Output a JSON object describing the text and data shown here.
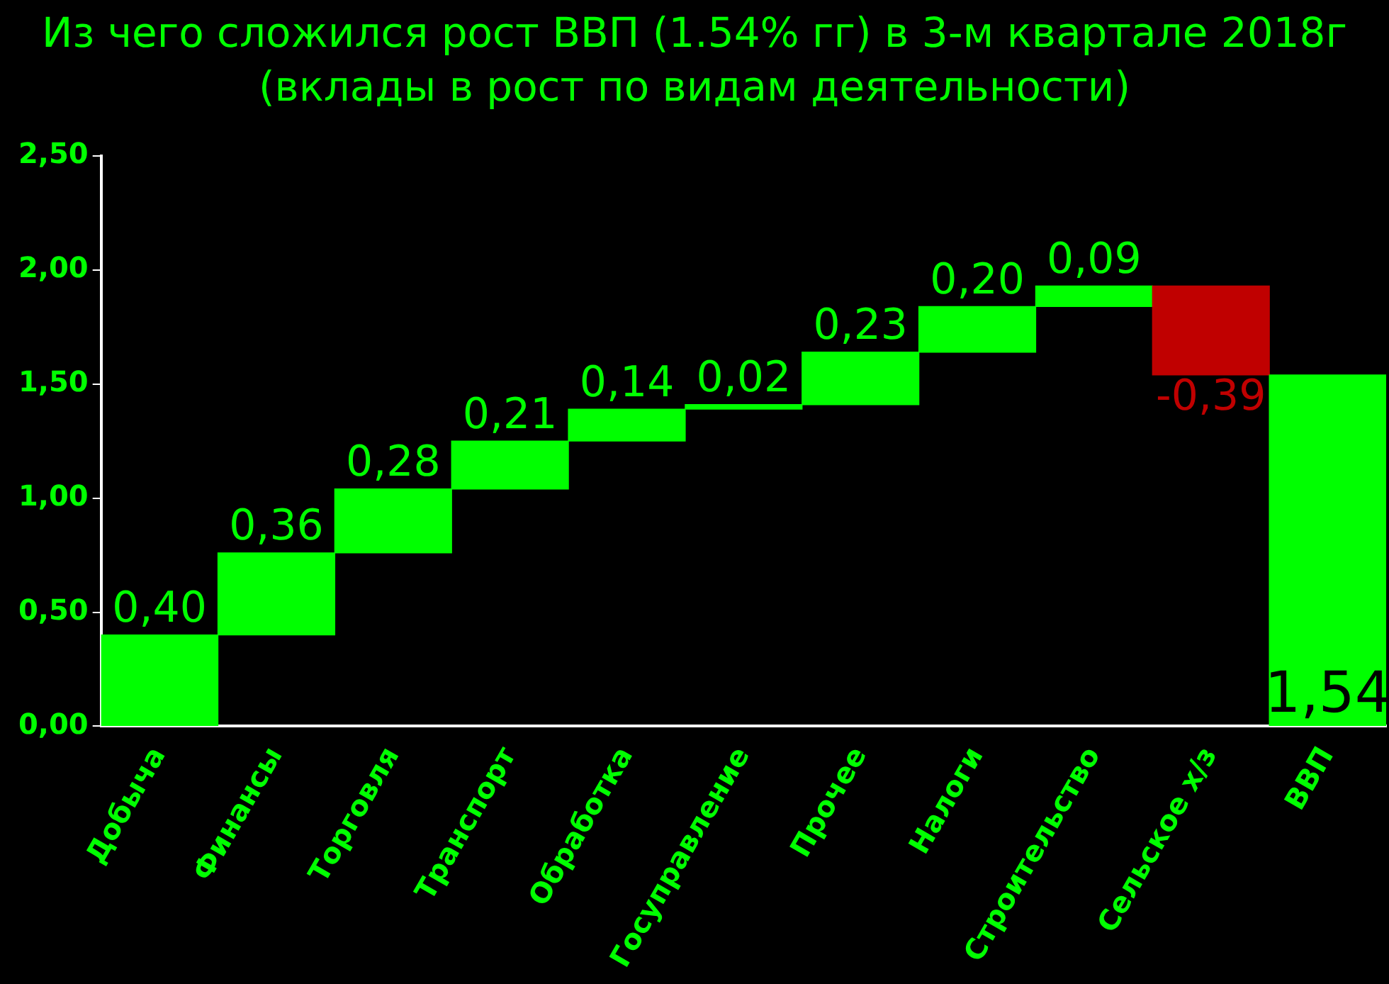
{
  "chart_data": {
    "type": "bar",
    "title": "Из чего сложился рост ВВП (1.54% гг) в 3-м квартале 2018г (вклады в рост по видам деятельности)",
    "categories": [
      "Добыча",
      "Финансы",
      "Торговля",
      "Транспорт",
      "Обработка",
      "Госуправление",
      "Прочее",
      "Налоги",
      "Строительство",
      "Сельское х/з",
      "ВВП"
    ],
    "values": [
      0.4,
      0.36,
      0.28,
      0.21,
      0.14,
      0.02,
      0.23,
      0.2,
      0.09,
      -0.39,
      1.54
    ],
    "base": [
      0,
      0.4,
      0.76,
      1.04,
      1.25,
      1.39,
      1.41,
      1.64,
      1.84,
      1.93,
      0
    ],
    "colors": [
      "#00ff00",
      "#00ff00",
      "#00ff00",
      "#00ff00",
      "#00ff00",
      "#00ff00",
      "#00ff00",
      "#00ff00",
      "#00ff00",
      "#c00000",
      "#00ff00"
    ],
    "value_labels": [
      "0,40",
      "0,36",
      "0,28",
      "0,21",
      "0,14",
      "0,02",
      "0,23",
      "0,20",
      "0,09",
      "-0,39",
      "1,54"
    ],
    "ylim": [
      0,
      2.5
    ],
    "yticks": [
      {
        "value": 0,
        "label": "0,00"
      },
      {
        "value": 0.5,
        "label": "0,50"
      },
      {
        "value": 1,
        "label": "1,00"
      },
      {
        "value": 1.5,
        "label": "1,50"
      },
      {
        "value": 2,
        "label": "2,00"
      },
      {
        "value": 2.5,
        "label": "2,50"
      }
    ],
    "grid": false,
    "legend": false
  }
}
